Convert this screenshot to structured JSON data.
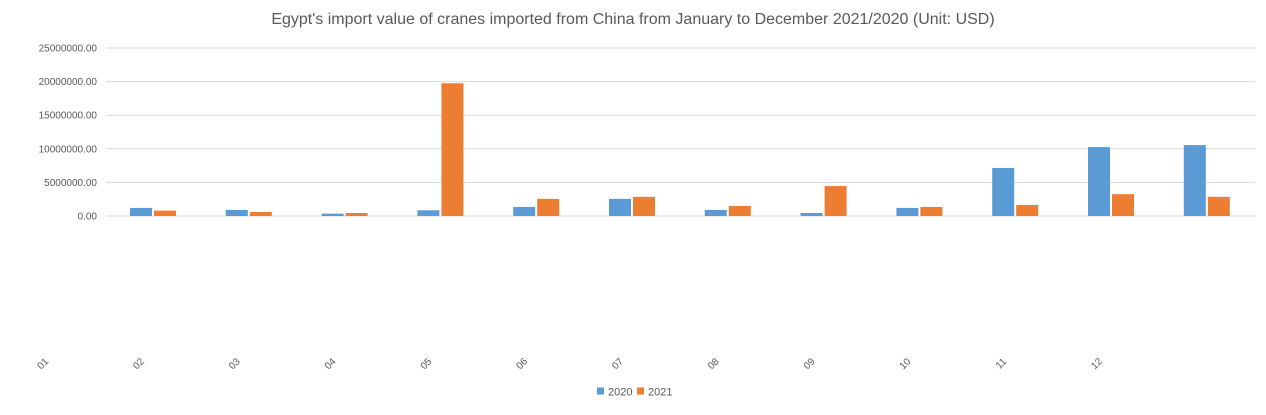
{
  "chart_data": {
    "type": "bar",
    "title": "Egypt's import value of cranes imported from China from January to December 2021/2020 (Unit: USD)",
    "xlabel": "",
    "ylabel": "",
    "categories": [
      "01",
      "02",
      "03",
      "04",
      "05",
      "06",
      "07",
      "08",
      "09",
      "10",
      "11",
      "12"
    ],
    "ylim": [
      0,
      25000000
    ],
    "yticks": [
      "0.00",
      "5000000.00",
      "10000000.00",
      "15000000.00",
      "20000000.00",
      "25000000.00"
    ],
    "grid": true,
    "legend_position": "bottom",
    "series": [
      {
        "name": "2020",
        "color": "#5b9bd5",
        "values": [
          1200000,
          900000,
          350000,
          850000,
          1350000,
          2550000,
          900000,
          450000,
          1200000,
          7150000,
          10250000,
          10550000
        ]
      },
      {
        "name": "2021",
        "color": "#ed7d31",
        "values": [
          800000,
          600000,
          450000,
          19750000,
          2550000,
          2850000,
          1500000,
          4450000,
          1350000,
          1650000,
          3250000,
          2850000
        ]
      }
    ]
  }
}
